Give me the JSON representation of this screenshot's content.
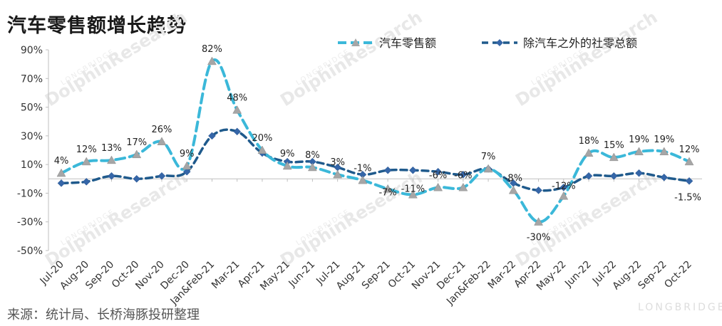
{
  "title": "汽车零售额增长趋势",
  "source": "来源：统计局、长桥海豚投研整理",
  "watermark": {
    "brand": "DolphinResearch",
    "sub": "LONGBRIDGE",
    "corner": "LONGBRIDGE"
  },
  "chart_data": {
    "type": "line",
    "title": "汽车零售额增长趋势",
    "xlabel": "",
    "ylabel": "",
    "ylim": [
      -50,
      90
    ],
    "yticks": [
      90,
      70,
      50,
      30,
      10,
      -10,
      -30,
      -50
    ],
    "ytick_labels": [
      "90%",
      "70%",
      "50%",
      "30%",
      "10%",
      "-10%",
      "-30%",
      "-50%"
    ],
    "legend_position": "top-right",
    "grid": false,
    "categories": [
      "Jul-20",
      "Aug-20",
      "Sep-20",
      "Oct-20",
      "Nov-20",
      "Dec-20",
      "Jan&Feb-21",
      "Mar-21",
      "Apr-21",
      "May-21",
      "Jun-21",
      "Jul-21",
      "Aug-21",
      "Sep-21",
      "Oct-21",
      "Nov-21",
      "Dec-21",
      "Jan&Feb-22",
      "Mar-22",
      "Apr-22",
      "May-22",
      "Jun-22",
      "Jul-22",
      "Aug-22",
      "Sep-22",
      "Oct-22"
    ],
    "series": [
      {
        "name": "汽车零售额",
        "color": "#3bb8d9",
        "marker": "triangle",
        "values": [
          4,
          12,
          13,
          17,
          26,
          9,
          82,
          48,
          20,
          9,
          8,
          3,
          -1,
          -7,
          -11,
          -6,
          -6,
          7,
          -8,
          -30,
          -12,
          18,
          15,
          19,
          19,
          12
        ],
        "labels": [
          "4%",
          "12%",
          "13%",
          "17%",
          "26%",
          "9%",
          "82%",
          "48%",
          "20%",
          "9%",
          "8%",
          "3%",
          "-1%",
          "-7%",
          "-11%",
          "-6%",
          "-6%",
          "7%",
          "-8%",
          "-30%",
          "-12%",
          "18%",
          "15%",
          "19%",
          "19%",
          "12%"
        ]
      },
      {
        "name": "除汽车之外的社零总额",
        "color": "#1f5a8c",
        "marker": "diamond",
        "values": [
          -3,
          -2,
          2,
          0,
          2,
          5,
          30,
          33,
          18,
          12,
          12,
          8,
          3,
          6,
          6,
          5,
          3,
          7,
          -3,
          -8,
          -6,
          2,
          2,
          4,
          1,
          -1.5
        ],
        "labels": [
          "",
          "",
          "",
          "",
          "",
          "",
          "",
          "",
          "",
          "",
          "",
          "",
          "",
          "",
          "",
          "",
          "",
          "",
          "",
          "",
          "",
          "",
          "",
          "",
          "",
          "-1.5%"
        ]
      }
    ]
  }
}
